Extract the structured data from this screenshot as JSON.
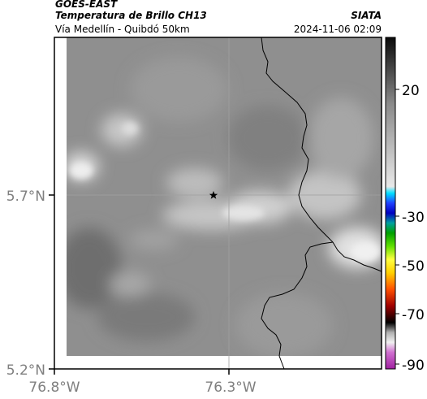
{
  "header": {
    "satellite": "GOES-EAST",
    "product": "Temperatura de Brillo CH13",
    "region": "Vía Medellín - Quibdó 50km",
    "agency": "SIATA",
    "datetime": "2024-11-06 02:09"
  },
  "map": {
    "lat_ticks": [
      "5.7°N",
      "5.2°N"
    ],
    "lon_ticks": [
      "76.8°W",
      "76.3°W"
    ],
    "marker": "star-marker",
    "background_color": "#8f8f8f"
  },
  "colorbar": {
    "tick_labels": [
      "20",
      "-30",
      "-50",
      "-70",
      "-90"
    ]
  }
}
